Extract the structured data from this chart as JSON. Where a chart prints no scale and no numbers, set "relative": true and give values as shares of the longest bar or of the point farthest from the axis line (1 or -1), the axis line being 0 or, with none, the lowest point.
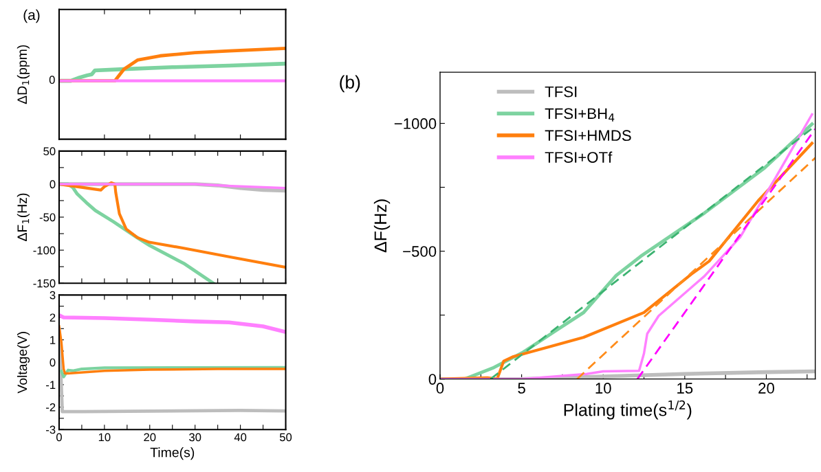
{
  "chart_data": [
    {
      "type": "line",
      "relative": true,
      "ylabel": "ΔD$_{1}$(ppm)",
      "annotations": [
        "(a)",
        "0"
      ],
      "tick_labels": false,
      "xlim": [
        0,
        50
      ],
      "xticks": [
        0,
        10,
        20,
        30,
        40,
        50
      ],
      "series": [
        {
          "color": "#7dd3a0",
          "x": [
            0,
            2.6,
            4.5,
            6.2,
            7.2,
            7.9,
            14.3,
            25,
            37.5,
            50
          ],
          "values": [
            0,
            0,
            0.1,
            0.17,
            0.2,
            0.32,
            0.36,
            0.42,
            0.47,
            0.53
          ]
        },
        {
          "color": "#ff7f0e",
          "x": [
            0,
            12.3,
            14.3,
            17.3,
            22.3,
            30,
            37.5,
            50
          ],
          "values": [
            0,
            0,
            0.36,
            0.64,
            0.77,
            0.87,
            0.92,
            1
          ]
        },
        {
          "color": "#ff80ff",
          "x": [
            0,
            50
          ],
          "values": [
            0,
            0
          ]
        }
      ]
    },
    {
      "type": "line",
      "ylabel": "ΔF$_{1}$(Hz)",
      "tick_labels": "y",
      "xlim": [
        0,
        50
      ],
      "ylim": [
        -150,
        50
      ],
      "xticks": [
        0,
        {
          "value": 5,
          "label": null
        },
        10,
        {
          "value": 15,
          "label": null
        },
        20,
        {
          "value": 25,
          "label": null
        },
        30,
        {
          "value": 35,
          "label": null
        },
        40,
        {
          "value": 45,
          "label": null
        },
        50
      ],
      "yticks": [
        -150,
        {
          "value": -125,
          "label": null
        },
        -100,
        {
          "value": -75,
          "label": null
        },
        -50,
        {
          "value": -25,
          "label": null
        },
        0,
        {
          "value": 25,
          "label": null
        },
        50
      ],
      "series": [
        {
          "color": "#bdbdbd",
          "x": [
            0,
            30,
            35,
            40,
            45,
            50
          ],
          "values": [
            0,
            0,
            -2,
            -6,
            -9,
            -10
          ]
        },
        {
          "color": "#7dd3a0",
          "x": [
            0,
            2,
            3,
            4,
            6,
            8,
            12,
            17,
            20,
            27.5,
            34
          ],
          "values": [
            0,
            0,
            -5,
            -15,
            -28,
            -40,
            -57,
            -80,
            -93,
            -120,
            -150
          ]
        },
        {
          "color": "#ff7f0e",
          "x": [
            0,
            9.2,
            10,
            11.5,
            12.3,
            12.5,
            13.3,
            14.8,
            17.3,
            19.9,
            27.5,
            37.5,
            50
          ],
          "values": [
            0,
            -9,
            -4,
            2,
            0,
            -13,
            -45,
            -68,
            -81,
            -88,
            -97,
            -110,
            -126
          ]
        },
        {
          "color": "#ff80ff",
          "x": [
            0,
            30,
            38,
            50
          ],
          "values": [
            0,
            0,
            -3,
            -6
          ]
        }
      ]
    },
    {
      "type": "line",
      "ylabel": "Voltage(V)",
      "xlabel": "Time(s)",
      "xlim": [
        0,
        50
      ],
      "ylim": [
        -3,
        3
      ],
      "xticks": [
        0,
        {
          "value": 5,
          "label": null
        },
        10,
        {
          "value": 15,
          "label": null
        },
        20,
        {
          "value": 25,
          "label": null
        },
        30,
        {
          "value": 35,
          "label": null
        },
        40,
        {
          "value": 45,
          "label": null
        },
        50
      ],
      "yticks": [
        -3,
        {
          "value": -2.5,
          "label": null
        },
        -2,
        {
          "value": -1.5,
          "label": null
        },
        -1,
        {
          "value": -0.5,
          "label": null
        },
        0,
        {
          "value": 0.5,
          "label": null
        },
        1,
        {
          "value": 1.5,
          "label": null
        },
        2,
        {
          "value": 2.5,
          "label": null
        },
        3
      ],
      "series": [
        {
          "color": "#ff80ff",
          "x": [
            0,
            1,
            10,
            20,
            30,
            37.5,
            45,
            50
          ],
          "values": [
            2.1,
            2.0,
            1.97,
            1.9,
            1.82,
            1.78,
            1.6,
            1.35
          ]
        },
        {
          "color": "#bdbdbd",
          "x": [
            0,
            0.3,
            0.7,
            5,
            40,
            50
          ],
          "values": [
            1.5,
            0,
            -2.2,
            -2.2,
            -2.15,
            -2.17
          ]
        },
        {
          "color": "#7dd3a0",
          "x": [
            0.5,
            1,
            1.5,
            2,
            3,
            5,
            10,
            50
          ],
          "values": [
            -0.4,
            -0.65,
            -0.5,
            -0.35,
            -0.38,
            -0.3,
            -0.25,
            -0.23
          ]
        },
        {
          "color": "#ff7f0e",
          "x": [
            0,
            0.5,
            1,
            1.3,
            2,
            10,
            20,
            35,
            50
          ],
          "values": [
            1.6,
            0.9,
            -0.3,
            -0.5,
            -0.5,
            -0.38,
            -0.33,
            -0.3,
            -0.3
          ]
        }
      ]
    },
    {
      "type": "line",
      "ylabel": "ΔF(Hz)",
      "xlabel": "Plating time(s$^{1/2}$)",
      "annotations": [
        "(b)"
      ],
      "legend": "top left",
      "xlim": [
        0,
        23
      ],
      "ylim": [
        0,
        -1200
      ],
      "xticks": [
        0,
        {
          "value": 2.5,
          "label": null
        },
        5,
        {
          "value": 7.5,
          "label": null
        },
        10,
        {
          "value": 12.5,
          "label": null
        },
        15,
        {
          "value": 17.5,
          "label": null
        },
        20,
        {
          "value": 22.5,
          "label": null
        }
      ],
      "yticks": [
        0,
        {
          "value": -250,
          "label": null
        },
        {
          "value": -500,
          "label": "−500"
        },
        {
          "value": -750,
          "label": null
        },
        {
          "value": -1000,
          "label": "−1000"
        }
      ],
      "series": [
        {
          "name": "TFSI",
          "color": "#bdbdbd",
          "x": [
            0,
            5,
            10,
            15,
            20,
            23
          ],
          "values": [
            0,
            0,
            -10,
            -20,
            -27,
            -30
          ]
        },
        {
          "name": "TFSI+BH$_{4}$",
          "color": "#7dd3a0",
          "x": [
            0,
            1.5,
            3.3,
            5.1,
            7,
            8.8,
            10.8,
            12.3,
            16.2,
            19.9,
            22.8
          ],
          "values": [
            0,
            0,
            -45,
            -105,
            -185,
            -260,
            -405,
            -480,
            -649,
            -826,
            -997
          ]
        },
        {
          "name": "TFSI+HMDS",
          "color": "#ff7f0e",
          "x": [
            0,
            2.9,
            3.5,
            3.9,
            4.5,
            5.5,
            8.8,
            12.5,
            15.4,
            16.5,
            19.5,
            22.8
          ],
          "values": [
            0,
            -5,
            0,
            -70,
            -88,
            -105,
            -163,
            -260,
            -410,
            -461,
            -697,
            -922
          ]
        },
        {
          "name": "TFSI+OTf",
          "color": "#ff80ff",
          "x": [
            0,
            5,
            9,
            10,
            12.2,
            12.5,
            12.7,
            13.4,
            16.2,
            18.4,
            20.6,
            22.8
          ],
          "values": [
            0,
            0,
            -20,
            -30,
            -32,
            -100,
            -177,
            -247,
            -402,
            -555,
            -791,
            -1035
          ]
        },
        {
          "color": "#3cb371",
          "line_style": "dashed",
          "x": [
            3.1,
            23
          ],
          "values": [
            0,
            -990
          ]
        },
        {
          "color": "#ff8c1a",
          "line_style": "dashed",
          "x": [
            8.4,
            23
          ],
          "values": [
            0,
            -865
          ]
        },
        {
          "color": "#ff00ff",
          "line_style": "dashed",
          "x": [
            12.1,
            23
          ],
          "values": [
            0,
            -978
          ]
        }
      ]
    }
  ]
}
